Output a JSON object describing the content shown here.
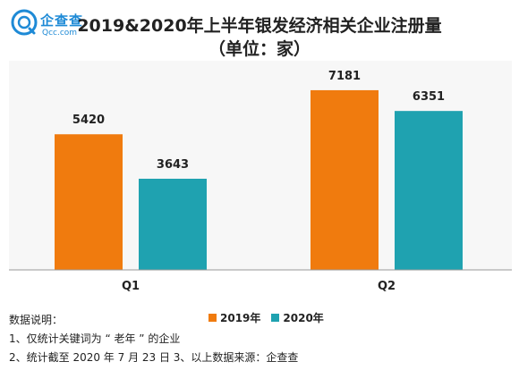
{
  "logo": {
    "name": "企查查",
    "sub": "Qcc.com"
  },
  "title_line1": "2019&2020年上半年银发经济相关企业注册量",
  "title_line2": "（单位：家）",
  "chart_data": {
    "type": "bar",
    "categories": [
      "Q1",
      "Q2"
    ],
    "series": [
      {
        "name": "2019年",
        "values": [
          5420,
          7181
        ],
        "color": "#f07b0e"
      },
      {
        "name": "2020年",
        "values": [
          3643,
          6351
        ],
        "color": "#1fa2b0"
      }
    ],
    "ylim": [
      0,
      8000
    ],
    "grid": false,
    "legend_position": "bottom-center",
    "title": "2019&2020年上半年银发经济相关企业注册量",
    "xlabel": "",
    "ylabel": ""
  },
  "notes": {
    "heading": "数据说明：",
    "line1": "1、仅统计关键词为 “ 老年 ” 的企业",
    "line2": "2、统计截至 2020 年 7 月 23 日   3、以上数据来源：企查查"
  }
}
